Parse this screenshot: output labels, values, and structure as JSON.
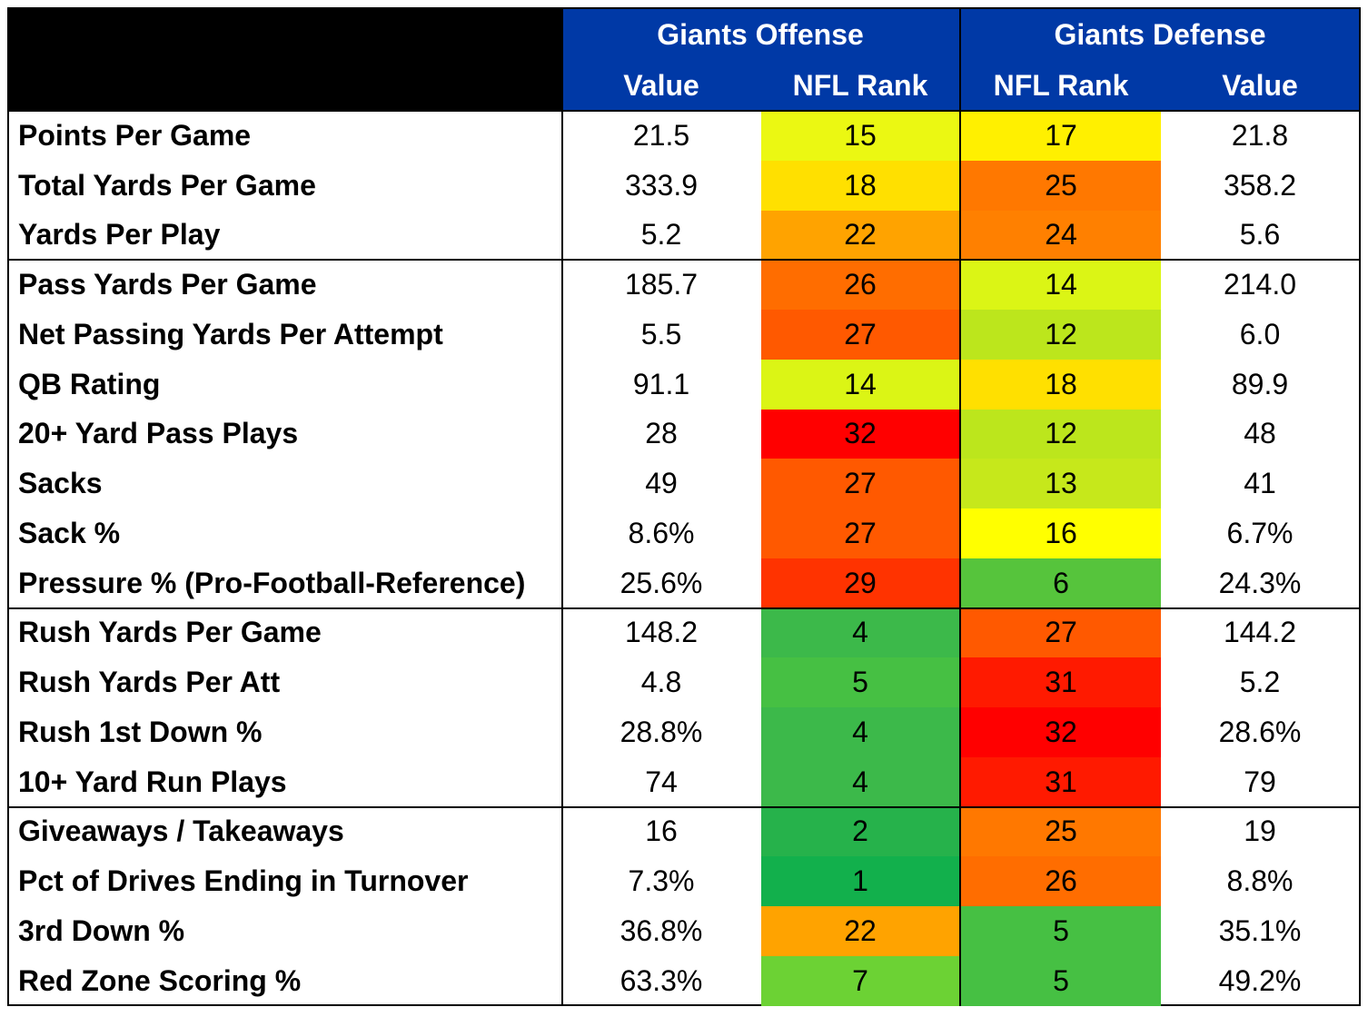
{
  "header": {
    "offense_title": "Giants Offense",
    "defense_title": "Giants Defense",
    "offense_value_label": "Value",
    "offense_rank_label": "NFL Rank",
    "defense_rank_label": "NFL Rank",
    "defense_value_label": "Value"
  },
  "chart_data": {
    "type": "table",
    "columns": [
      "",
      "Giants Offense Value",
      "Giants Offense NFL Rank",
      "Giants Defense NFL Rank",
      "Giants Defense Value"
    ],
    "sections": [
      [
        {
          "metric": "Points Per Game",
          "off_value": "21.5",
          "off_rank": "15",
          "def_rank": "17",
          "def_value": "21.8"
        },
        {
          "metric": "Total Yards Per Game",
          "off_value": "333.9",
          "off_rank": "18",
          "def_rank": "25",
          "def_value": "358.2"
        },
        {
          "metric": "Yards Per Play",
          "off_value": "5.2",
          "off_rank": "22",
          "def_rank": "24",
          "def_value": "5.6"
        }
      ],
      [
        {
          "metric": "Pass Yards Per Game",
          "off_value": "185.7",
          "off_rank": "26",
          "def_rank": "14",
          "def_value": "214.0"
        },
        {
          "metric": "Net Passing Yards Per Attempt",
          "off_value": "5.5",
          "off_rank": "27",
          "def_rank": "12",
          "def_value": "6.0"
        },
        {
          "metric": "QB Rating",
          "off_value": "91.1",
          "off_rank": "14",
          "def_rank": "18",
          "def_value": "89.9"
        },
        {
          "metric": "20+ Yard Pass Plays",
          "off_value": "28",
          "off_rank": "32",
          "def_rank": "12",
          "def_value": "48"
        },
        {
          "metric": "Sacks",
          "off_value": "49",
          "off_rank": "27",
          "def_rank": "13",
          "def_value": "41"
        },
        {
          "metric": "Sack %",
          "off_value": "8.6%",
          "off_rank": "27",
          "def_rank": "16",
          "def_value": "6.7%"
        },
        {
          "metric": "Pressure % (Pro-Football-Reference)",
          "off_value": "25.6%",
          "off_rank": "29",
          "def_rank": "6",
          "def_value": "24.3%"
        }
      ],
      [
        {
          "metric": "Rush Yards Per Game",
          "off_value": "148.2",
          "off_rank": "4",
          "def_rank": "27",
          "def_value": "144.2"
        },
        {
          "metric": "Rush Yards Per Att",
          "off_value": "4.8",
          "off_rank": "5",
          "def_rank": "31",
          "def_value": "5.2"
        },
        {
          "metric": "Rush 1st Down %",
          "off_value": "28.8%",
          "off_rank": "4",
          "def_rank": "32",
          "def_value": "28.6%"
        },
        {
          "metric": "10+ Yard Run Plays",
          "off_value": "74",
          "off_rank": "4",
          "def_rank": "31",
          "def_value": "79"
        }
      ],
      [
        {
          "metric": "Giveaways / Takeaways",
          "off_value": "16",
          "off_rank": "2",
          "def_rank": "25",
          "def_value": "19"
        },
        {
          "metric": "Pct of Drives Ending in Turnover",
          "off_value": "7.3%",
          "off_rank": "1",
          "def_rank": "26",
          "def_value": "8.8%"
        },
        {
          "metric": "3rd Down %",
          "off_value": "36.8%",
          "off_rank": "22",
          "def_rank": "5",
          "def_value": "35.1%"
        },
        {
          "metric": "Red Zone Scoring %",
          "off_value": "63.3%",
          "off_rank": "7",
          "def_rank": "5",
          "def_value": "49.2%"
        }
      ]
    ],
    "rank_colors": {
      "1": "#12b04c",
      "2": "#26b24b",
      "4": "#3cb94a",
      "5": "#46c043",
      "6": "#56c43c",
      "7": "#6cd234",
      "12": "#bce61c",
      "13": "#c6e81b",
      "14": "#dbf515",
      "15": "#ebf812",
      "16": "#ffff00",
      "17": "#fff000",
      "18": "#ffe000",
      "22": "#ffa300",
      "24": "#ff8000",
      "25": "#ff7800",
      "26": "#ff6d00",
      "27": "#ff5900",
      "29": "#ff3300",
      "31": "#ff1a00",
      "32": "#ff0000"
    }
  }
}
